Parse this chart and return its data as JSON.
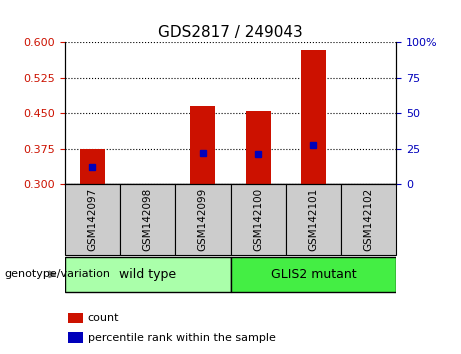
{
  "title": "GDS2817 / 249043",
  "samples": [
    "GSM142097",
    "GSM142098",
    "GSM142099",
    "GSM142100",
    "GSM142101",
    "GSM142102"
  ],
  "red_bar_top": [
    0.375,
    0.3,
    0.465,
    0.455,
    0.585,
    0.3
  ],
  "blue_dot_y": [
    0.337,
    null,
    0.365,
    0.363,
    0.383,
    null
  ],
  "y_min": 0.3,
  "y_max": 0.6,
  "y_ticks_left": [
    0.3,
    0.375,
    0.45,
    0.525,
    0.6
  ],
  "y_ticks_right_vals": [
    0,
    25,
    50,
    75,
    100
  ],
  "y_ticks_right_labels": [
    "0",
    "25",
    "50",
    "75",
    "100%"
  ],
  "bar_color": "#cc1100",
  "dot_color": "#0000bb",
  "bar_width": 0.45,
  "group_wild_label": "wild type",
  "group_mutant_label": "GLIS2 mutant",
  "group_color_wild": "#aaffaa",
  "group_color_mutant": "#44ee44",
  "group_label_text": "genotype/variation",
  "legend_count_label": "count",
  "legend_pct_label": "percentile rank within the sample",
  "tick_color_left": "#cc1100",
  "tick_color_right": "#0000bb",
  "sample_bg_color": "#cccccc",
  "plot_bg": "#ffffff",
  "fig_bg": "#ffffff",
  "title_fontsize": 11,
  "tick_fontsize": 8,
  "sample_fontsize": 7.5,
  "group_fontsize": 9,
  "legend_fontsize": 8
}
